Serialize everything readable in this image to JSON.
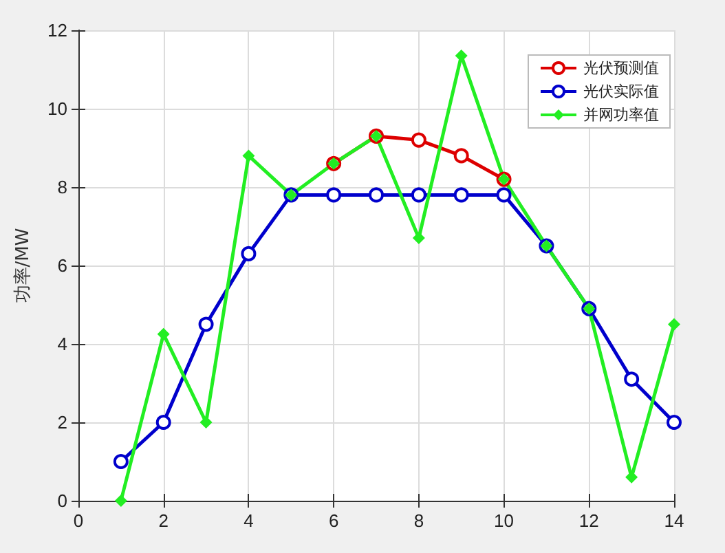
{
  "chart_data": {
    "type": "line",
    "ylabel": "功率/MW",
    "x": [
      1,
      2,
      3,
      4,
      5,
      6,
      7,
      8,
      9,
      10,
      11,
      12,
      13,
      14
    ],
    "series": [
      {
        "name": "光伏预测值",
        "color": "#dd0000",
        "marker": "circle",
        "values": [
          null,
          null,
          null,
          null,
          null,
          8.6,
          9.3,
          9.2,
          8.8,
          8.2,
          null,
          null,
          null,
          null
        ]
      },
      {
        "name": "光伏实际值",
        "color": "#0000cc",
        "marker": "circle",
        "values": [
          1,
          2,
          4.5,
          6.3,
          7.8,
          7.8,
          7.8,
          7.8,
          7.8,
          7.8,
          6.5,
          4.9,
          3.1,
          2
        ]
      },
      {
        "name": "并网功率值",
        "color": "#22ee22",
        "marker": "diamond",
        "values": [
          0,
          4.25,
          2,
          8.8,
          7.8,
          8.6,
          9.3,
          6.7,
          11.35,
          8.2,
          6.5,
          4.9,
          0.6,
          4.5
        ]
      }
    ],
    "xlim": [
      0,
      14
    ],
    "xticks": [
      0,
      2,
      4,
      6,
      8,
      10,
      12,
      14
    ],
    "ylim": [
      0,
      12
    ],
    "yticks": [
      0,
      2,
      4,
      6,
      8,
      10,
      12
    ],
    "grid": true,
    "legend": "top right",
    "line_style": "solid"
  }
}
